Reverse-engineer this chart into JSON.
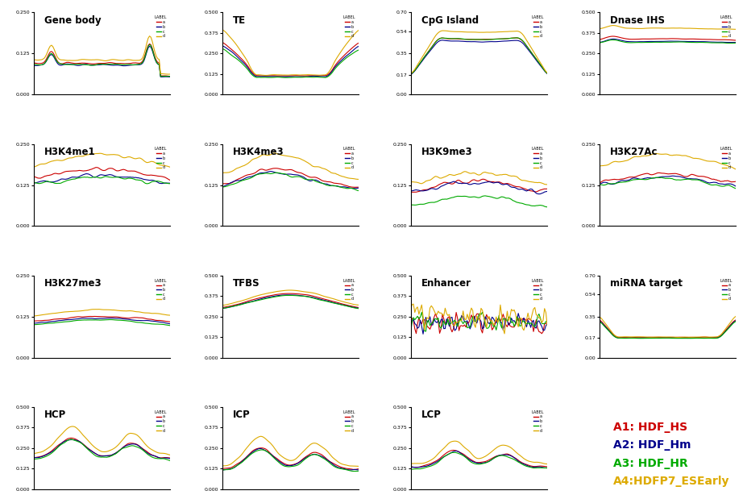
{
  "colors": {
    "A1": "#cc0000",
    "A2": "#00008b",
    "A3": "#00aa00",
    "A4": "#ddaa00"
  },
  "legend_labels": {
    "A1": "A1: HDF_HS",
    "A2": "A2: HDF_Hm",
    "A3": "A3: HDF_HR",
    "A4": "A4:HDFP7_ESEarly"
  },
  "subplot_titles": [
    "Gene body",
    "TE",
    "CpG Island",
    "Dnase IHS",
    "H3K4me1",
    "H3K4me3",
    "H3K9me3",
    "H3K27Ac",
    "H3K27me3",
    "TFBS",
    "Enhancer",
    "miRNA target",
    "HCP",
    "ICP",
    "LCP"
  ],
  "ylims": {
    "Gene body": [
      0,
      0.25
    ],
    "TE": [
      0,
      0.5
    ],
    "CpG Island": [
      0,
      0.7
    ],
    "Dnase IHS": [
      0,
      0.5
    ],
    "H3K4me1": [
      0,
      0.25
    ],
    "H3K4me3": [
      0,
      0.25
    ],
    "H3K9me3": [
      0,
      0.25
    ],
    "H3K27Ac": [
      0,
      0.25
    ],
    "H3K27me3": [
      0,
      0.25
    ],
    "TFBS": [
      0,
      0.5
    ],
    "Enhancer": [
      0,
      0.5
    ],
    "miRNA target": [
      0,
      0.7
    ],
    "HCP": [
      0,
      0.5
    ],
    "ICP": [
      0,
      0.5
    ],
    "LCP": [
      0,
      0.5
    ]
  },
  "yticks": {
    "Gene body": [
      0,
      0.125,
      0.25
    ],
    "TE": [
      0,
      0.125,
      0.25,
      0.375,
      0.5
    ],
    "CpG Island": [
      0,
      0.17,
      0.35,
      0.54,
      0.7
    ],
    "Dnase IHS": [
      0,
      0.125,
      0.25,
      0.375,
      0.5
    ],
    "H3K4me1": [
      0,
      0.125,
      0.25
    ],
    "H3K4me3": [
      0,
      0.125,
      0.25
    ],
    "H3K9me3": [
      0,
      0.125,
      0.25
    ],
    "H3K27Ac": [
      0,
      0.125,
      0.25
    ],
    "H3K27me3": [
      0,
      0.125,
      0.25
    ],
    "TFBS": [
      0,
      0.125,
      0.25,
      0.375,
      0.5
    ],
    "Enhancer": [
      0,
      0.125,
      0.25,
      0.375,
      0.5
    ],
    "miRNA target": [
      0,
      0.17,
      0.35,
      0.54,
      0.7
    ],
    "HCP": [
      0,
      0.125,
      0.25,
      0.375,
      0.5
    ],
    "ICP": [
      0,
      0.125,
      0.25,
      0.375,
      0.5
    ],
    "LCP": [
      0,
      0.125,
      0.25,
      0.375,
      0.5
    ]
  }
}
